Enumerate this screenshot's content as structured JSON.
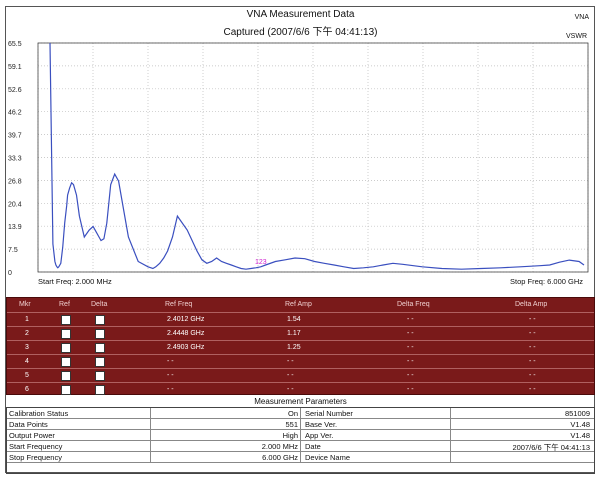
{
  "header": {
    "title": "VNA Measurement Data",
    "subtitle": "Captured  (2007/6/6 下午 04:41:13)",
    "brand": "VNA",
    "mode": "VSWR"
  },
  "chart_data": {
    "type": "line",
    "y_ticks": [
      "65.5",
      "59.1",
      "52.6",
      "46.2",
      "39.7",
      "33.3",
      "26.8",
      "20.4",
      "13.9",
      "7.5",
      "0"
    ],
    "ylim": [
      0,
      65.5
    ],
    "x_label_start": "Start Freq: 2.000 MHz",
    "x_label_stop": "Stop Freq: 6.000 GHz",
    "marker_label": "123",
    "series": [
      {
        "x": [
          0,
          3,
          5,
          6,
          7,
          8,
          9,
          11,
          13,
          15,
          17,
          18,
          20,
          22,
          24,
          27,
          30,
          35,
          40,
          44,
          47,
          50,
          52,
          55,
          58,
          62,
          66,
          70,
          75,
          80,
          90,
          100,
          105,
          108,
          112,
          116,
          120,
          125,
          130,
          140,
          150,
          155,
          160,
          165,
          170,
          175,
          180,
          185,
          190,
          195,
          200,
          205,
          210,
          215,
          220,
          230,
          240,
          250,
          260,
          270,
          280,
          290,
          300,
          310,
          320,
          330,
          340,
          350,
          360,
          380,
          400,
          420,
          440,
          460,
          480,
          500,
          510,
          520,
          530,
          540,
          545
        ],
        "values": [
          65.5,
          8,
          3,
          2,
          1.5,
          1.2,
          1.5,
          2.5,
          7,
          14,
          19,
          22,
          24,
          25.5,
          25,
          22,
          16,
          10,
          12,
          13,
          11.5,
          10,
          9,
          9.5,
          14,
          25,
          28,
          26,
          18,
          10,
          3,
          1.5,
          1,
          1.5,
          2.5,
          4,
          6,
          10,
          16,
          12,
          6,
          3.5,
          2.5,
          3,
          4,
          3,
          2.5,
          2,
          1.5,
          1,
          0.8,
          1,
          1.2,
          1.5,
          2,
          3,
          3.5,
          4,
          3.8,
          3,
          2.5,
          2,
          1.5,
          1,
          1.2,
          1.5,
          2,
          2.5,
          2.2,
          1.5,
          1,
          0.8,
          1,
          1.2,
          1.5,
          1.8,
          2,
          2.8,
          3.4,
          3,
          2
        ]
      }
    ],
    "grid": true
  },
  "markers": {
    "headers": [
      "Mkr",
      "Ref",
      "Delta",
      "Ref Freq",
      "Ref Amp",
      "Delta Freq",
      "Delta Amp"
    ],
    "rows": [
      {
        "mkr": "1",
        "ref_freq": "2.4012 GHz",
        "ref_amp": "1.54",
        "delta_freq": "- -",
        "delta_amp": "- -"
      },
      {
        "mkr": "2",
        "ref_freq": "2.4448 GHz",
        "ref_amp": "1.17",
        "delta_freq": "- -",
        "delta_amp": "- -"
      },
      {
        "mkr": "3",
        "ref_freq": "2.4903 GHz",
        "ref_amp": "1.25",
        "delta_freq": "- -",
        "delta_amp": "- -"
      },
      {
        "mkr": "4",
        "ref_freq": "- -",
        "ref_amp": "- -",
        "delta_freq": "- -",
        "delta_amp": "- -"
      },
      {
        "mkr": "5",
        "ref_freq": "- -",
        "ref_amp": "- -",
        "delta_freq": "- -",
        "delta_amp": "- -"
      },
      {
        "mkr": "6",
        "ref_freq": "- -",
        "ref_amp": "- -",
        "delta_freq": "- -",
        "delta_amp": "- -"
      }
    ]
  },
  "params": {
    "title": "Measurement Parameters",
    "rows": [
      {
        "l1": "Calibration Status",
        "v1": "On",
        "l2": "Serial Number",
        "v2": "851009"
      },
      {
        "l1": "Data Points",
        "v1": "551",
        "l2": "Base Ver.",
        "v2": "V1.48"
      },
      {
        "l1": "Output Power",
        "v1": "High",
        "l2": "App Ver.",
        "v2": "V1.48"
      },
      {
        "l1": "Start Frequency",
        "v1": "2.000 MHz",
        "l2": "Date",
        "v2": "2007/6/6 下午 04:41:13"
      },
      {
        "l1": "Stop Frequency",
        "v1": "6.000 GHz",
        "l2": "Device Name",
        "v2": ""
      }
    ]
  }
}
